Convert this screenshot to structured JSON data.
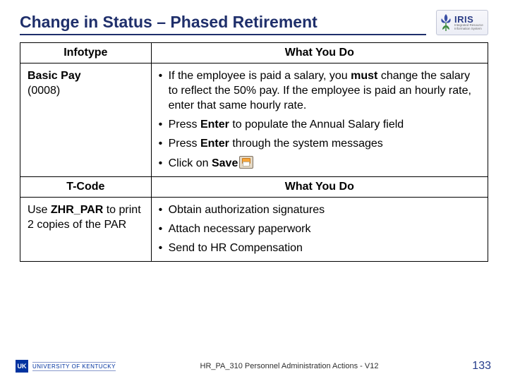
{
  "title": "Change in Status – Phased Retirement",
  "logo": {
    "name": "IRIS",
    "sub1": "Integrated Resource",
    "sub2": "Information System"
  },
  "colors": {
    "heading": "#1f2f6b",
    "border": "#000000",
    "uk_blue": "#0033a0",
    "background": "#ffffff"
  },
  "table1": {
    "headers": [
      "Infotype",
      "What You Do"
    ],
    "left": {
      "name": "Basic Pay",
      "code": "(0008)"
    },
    "bullets": [
      [
        {
          "t": "If the employee is paid a salary, you "
        },
        {
          "t": "must",
          "b": true
        },
        {
          "t": " change the salary to reflect the 50% pay. If the employee is paid an hourly rate, enter that same hourly rate."
        }
      ],
      [
        {
          "t": "Press "
        },
        {
          "t": "Enter",
          "b": true
        },
        {
          "t": " to populate the Annual Salary field"
        }
      ],
      [
        {
          "t": "Press "
        },
        {
          "t": "Enter",
          "b": true
        },
        {
          "t": " through the system messages"
        }
      ],
      [
        {
          "t": "Click on "
        },
        {
          "t": "Save",
          "b": true
        },
        {
          "icon": "save"
        }
      ]
    ]
  },
  "table2": {
    "headers": [
      "T-Code",
      "What You Do"
    ],
    "left": [
      {
        "t": "Use "
      },
      {
        "t": "ZHR_PAR",
        "b": true
      },
      {
        "t": " to print 2 copies of the PAR"
      }
    ],
    "bullets": [
      [
        {
          "t": "Obtain authorization signatures"
        }
      ],
      [
        {
          "t": "Attach necessary paperwork"
        }
      ],
      [
        {
          "t": "Send to HR Compensation"
        }
      ]
    ]
  },
  "footer": {
    "badge_initials": "UK",
    "badge_text": "UNIVERSITY OF KENTUCKY",
    "doc": "HR_PA_310 Personnel Administration Actions - V12",
    "page": "133"
  }
}
